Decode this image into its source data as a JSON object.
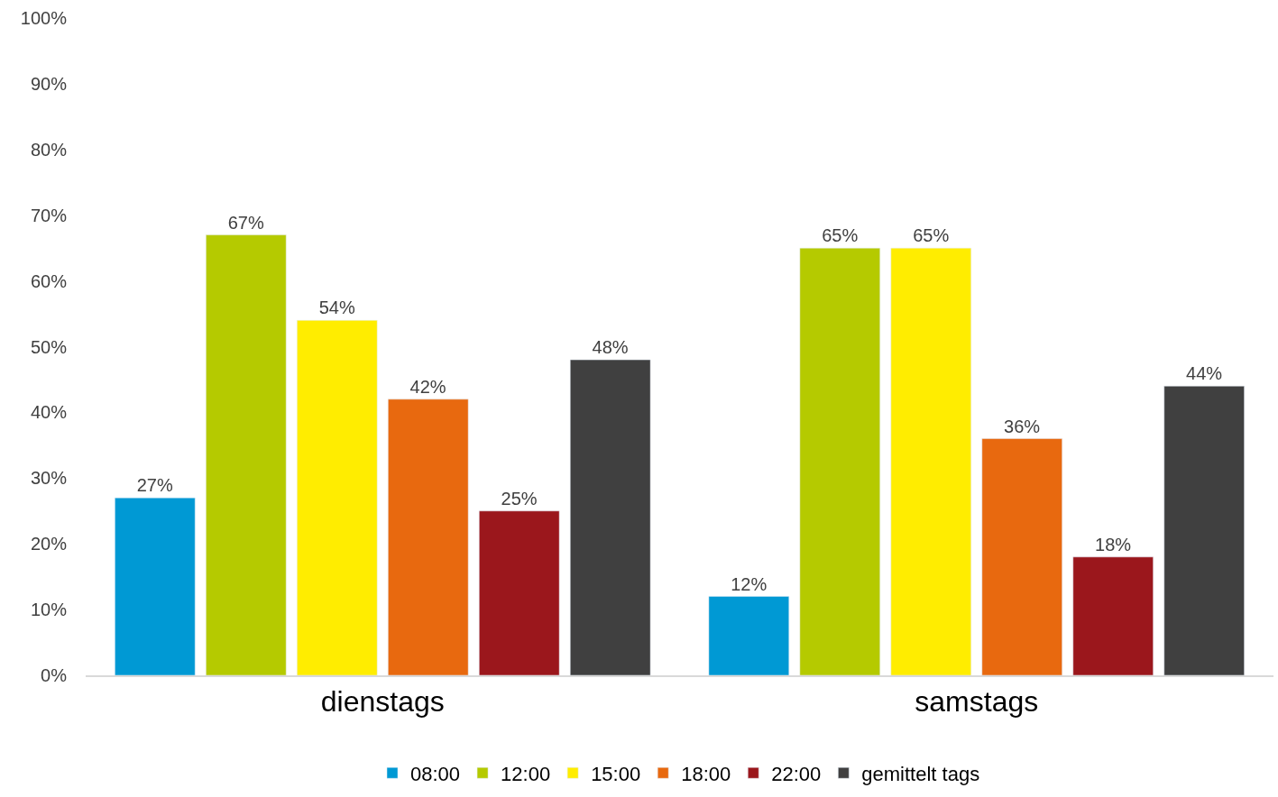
{
  "chart_data": {
    "type": "bar",
    "categories": [
      "dienstags",
      "samstags"
    ],
    "series": [
      {
        "name": "08:00",
        "color": "#0099d4",
        "values": [
          27,
          12
        ],
        "value_labels": [
          "27%",
          "12%"
        ]
      },
      {
        "name": "12:00",
        "color": "#b5ca00",
        "values": [
          67,
          65
        ],
        "value_labels": [
          "67%",
          "65%"
        ]
      },
      {
        "name": "15:00",
        "color": "#ffed00",
        "values": [
          54,
          65
        ],
        "value_labels": [
          "54%",
          "65%"
        ]
      },
      {
        "name": "18:00",
        "color": "#e8690f",
        "values": [
          42,
          36
        ],
        "value_labels": [
          "42%",
          "36%"
        ]
      },
      {
        "name": "22:00",
        "color": "#9b171c",
        "values": [
          25,
          18
        ],
        "value_labels": [
          "25%",
          "18%"
        ]
      },
      {
        "name": "gemittelt tags",
        "color": "#404040",
        "values": [
          48,
          44
        ],
        "value_labels": [
          "48%",
          "44%"
        ]
      }
    ],
    "ylim": [
      0,
      100
    ],
    "yticks": [
      {
        "value": 0,
        "label": "0%"
      },
      {
        "value": 10,
        "label": "10%"
      },
      {
        "value": 20,
        "label": "20%"
      },
      {
        "value": 30,
        "label": "30%"
      },
      {
        "value": 40,
        "label": "40%"
      },
      {
        "value": 50,
        "label": "50%"
      },
      {
        "value": 60,
        "label": "60%"
      },
      {
        "value": 70,
        "label": "70%"
      },
      {
        "value": 80,
        "label": "80%"
      },
      {
        "value": 90,
        "label": "90%"
      },
      {
        "value": 100,
        "label": "100%"
      }
    ],
    "grid": false,
    "legend": "bottom"
  }
}
